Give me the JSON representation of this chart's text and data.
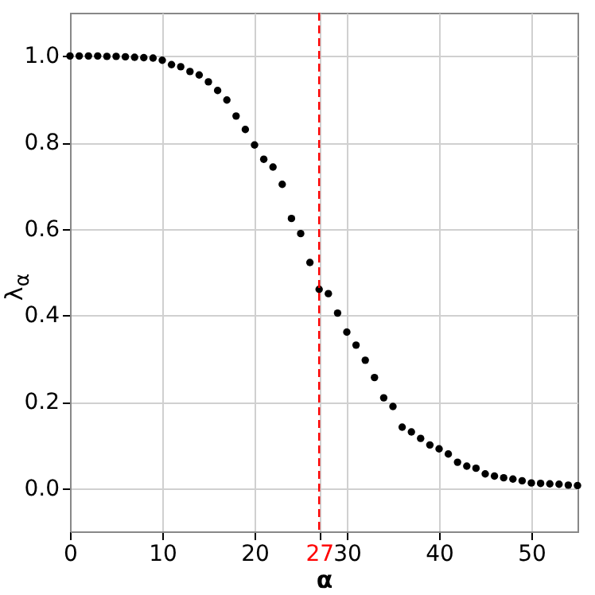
{
  "chart_data": {
    "type": "scatter",
    "xlabel": "α",
    "ylabel": "λ$_{α}$",
    "x": [
      0,
      1,
      2,
      3,
      4,
      5,
      6,
      7,
      8,
      9,
      10,
      11,
      12,
      13,
      14,
      15,
      16,
      17,
      18,
      19,
      20,
      21,
      22,
      23,
      24,
      25,
      26,
      27,
      28,
      29,
      30,
      31,
      32,
      33,
      34,
      35,
      36,
      37,
      38,
      39,
      40,
      41,
      42,
      43,
      44,
      45,
      46,
      47,
      48,
      49,
      50,
      51,
      52,
      53,
      54,
      55
    ],
    "series": [
      {
        "color": "#000000",
        "values": [
          1.0,
          1.0,
          1.0,
          1.0,
          0.999,
          0.999,
          0.998,
          0.997,
          0.996,
          0.995,
          0.99,
          0.98,
          0.975,
          0.964,
          0.956,
          0.94,
          0.92,
          0.898,
          0.861,
          0.83,
          0.794,
          0.761,
          0.743,
          0.703,
          0.624,
          0.589,
          0.522,
          0.46,
          0.45,
          0.405,
          0.361,
          0.331,
          0.296,
          0.256,
          0.209,
          0.189,
          0.141,
          0.13,
          0.115,
          0.1,
          0.091,
          0.079,
          0.06,
          0.051,
          0.046,
          0.033,
          0.028,
          0.024,
          0.021,
          0.017,
          0.012,
          0.011,
          0.01,
          0.009,
          0.007,
          0.006
        ]
      }
    ],
    "xlim": [
      0,
      55
    ],
    "xticks": [
      0,
      10,
      20,
      27,
      30,
      40,
      50
    ],
    "ylim": [
      -0.1,
      1.1
    ],
    "yticks": [
      {
        "value": 0,
        "label": "0.0"
      },
      {
        "value": 0.2,
        "label": "0.2"
      },
      {
        "value": 0.4,
        "label": "0.4"
      },
      {
        "value": 0.6,
        "label": "0.6"
      },
      {
        "value": 0.8,
        "label": "0.8"
      },
      {
        "value": 1,
        "label": "1.0"
      }
    ],
    "ref_lines": [
      {
        "axis": "x",
        "value": 27,
        "color": "#ff0000",
        "line_style": "dashed"
      }
    ],
    "grid": true,
    "marker": "circle"
  }
}
